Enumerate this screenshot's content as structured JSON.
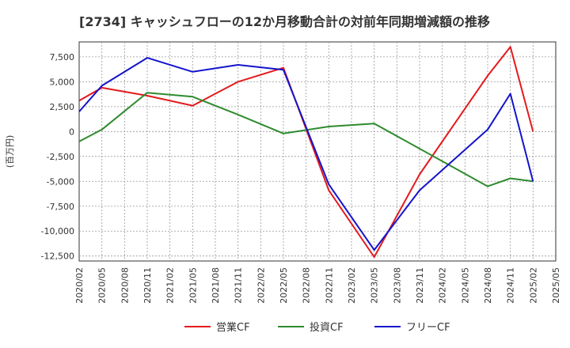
{
  "chart_data": {
    "type": "line",
    "title": "[2734]  キャッシュフローの12か月移動合計の対前年同期増減額の推移",
    "ylabel": "(百万円)",
    "xlabel": "",
    "x": [
      "2020/02",
      "2020/05",
      "2020/08",
      "2020/11",
      "2021/02",
      "2021/05",
      "2021/08",
      "2021/11",
      "2022/02",
      "2022/05",
      "2022/08",
      "2022/11",
      "2023/02",
      "2023/05",
      "2023/08",
      "2023/11",
      "2024/02",
      "2024/05",
      "2024/08",
      "2024/11",
      "2025/02",
      "2025/05"
    ],
    "ylim": [
      -13000,
      9000
    ],
    "yticks": [
      7500,
      5000,
      2500,
      0,
      -2500,
      -5000,
      -7500,
      -10000,
      -12500
    ],
    "ytick_labels": [
      "7,500",
      "5,000",
      "2,500",
      "0",
      "-2,500",
      "-5,000",
      "-7,500",
      "-10,000",
      "-12,500"
    ],
    "grid": true,
    "legend_position": "bottom",
    "series": [
      {
        "name": "営業CF",
        "color": "#e41a1c",
        "values": [
          3100,
          4400,
          null,
          3600,
          null,
          2600,
          null,
          5000,
          null,
          6400,
          null,
          -5900,
          null,
          -12600,
          null,
          -4300,
          null,
          null,
          5600,
          8500,
          0,
          null
        ]
      },
      {
        "name": "投資CF",
        "color": "#2e8b2e",
        "values": [
          -1000,
          200,
          null,
          3900,
          null,
          3500,
          null,
          1700,
          null,
          -200,
          null,
          500,
          null,
          800,
          null,
          null,
          null,
          null,
          -5500,
          -4700,
          -5000,
          null
        ]
      },
      {
        "name": "フリーCF",
        "color": "#1414cc",
        "values": [
          2000,
          4600,
          null,
          7400,
          null,
          6000,
          null,
          6700,
          null,
          6200,
          null,
          -5300,
          null,
          -11900,
          null,
          -5900,
          null,
          null,
          200,
          3800,
          -5000,
          null
        ]
      }
    ]
  }
}
